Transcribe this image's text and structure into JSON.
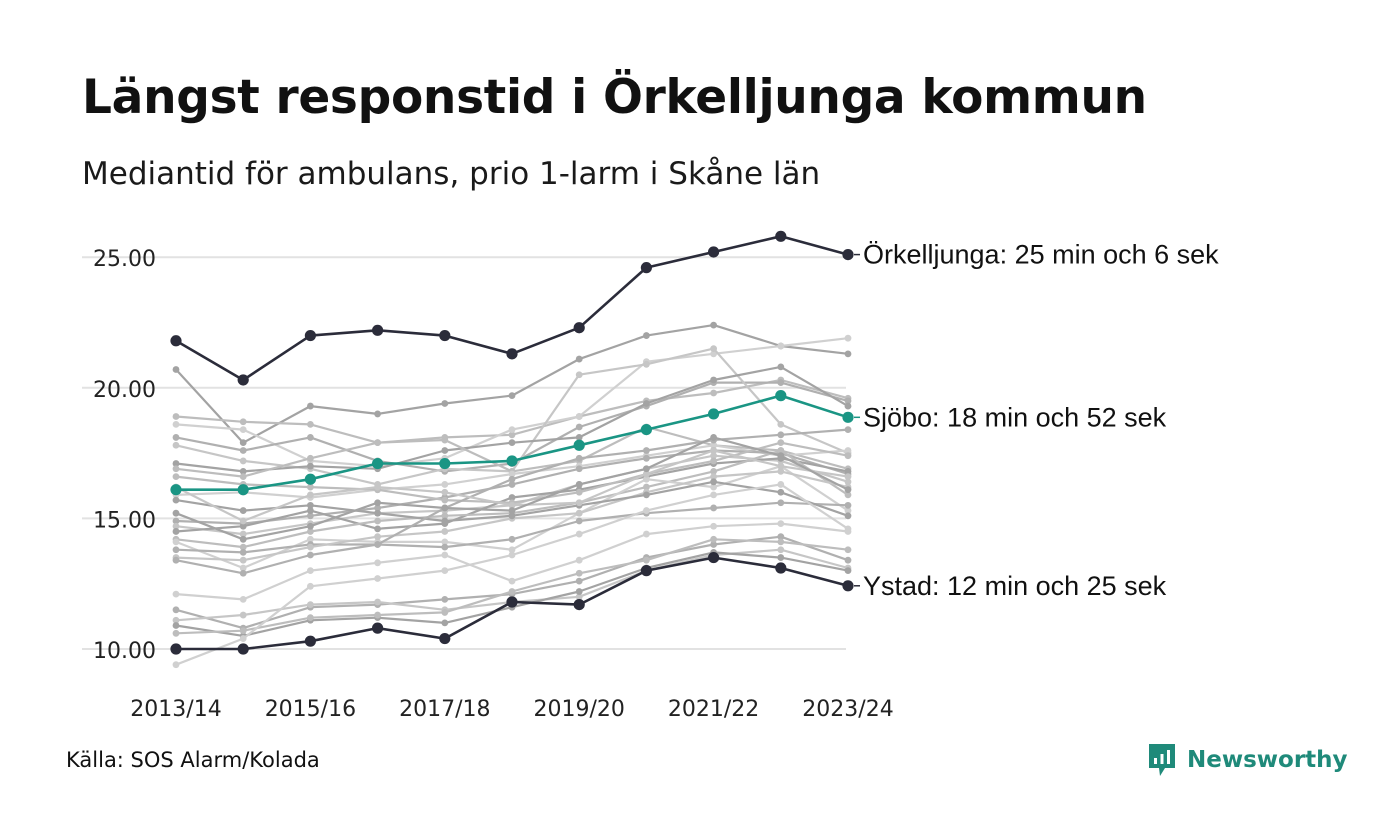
{
  "title": "Längst responstid i Örkelljunga kommun",
  "subtitle": "Mediantid för ambulans, prio 1-larm i Skåne län",
  "source": "Källa: SOS Alarm/Kolada",
  "brand": "Newsworthy",
  "colors": {
    "highlight": "#2b2c3a",
    "accent": "#1a9584",
    "background_lines": [
      "#a3a3a3",
      "#bdbdbd",
      "#d0d0d0",
      "#b0b0b0",
      "#c6c6c6"
    ],
    "grid": "#e2e2e2",
    "brand": "#1f8a7a"
  },
  "chart_data": {
    "type": "line",
    "ylim": [
      9.5,
      26
    ],
    "yticks": [
      "10.00",
      "15.00",
      "20.00",
      "25.00"
    ],
    "grid": true,
    "x": [
      "2013/14",
      "2014/15",
      "2015/16",
      "2016/17",
      "2017/18",
      "2018/19",
      "2019/20",
      "2020/21",
      "2021/22",
      "2022/23",
      "2023/24"
    ],
    "xtick_labels": [
      "2013/14",
      "2015/16",
      "2017/18",
      "2019/20",
      "2021/22",
      "2023/24"
    ],
    "highlighted_series": [
      {
        "name": "Örkelljunga",
        "label": "Örkelljunga: 25 min och 6 sek",
        "color": "#2b2c3a",
        "values": [
          21.8,
          20.3,
          22.0,
          22.2,
          22.0,
          21.3,
          22.3,
          24.6,
          25.2,
          25.8,
          25.1
        ]
      },
      {
        "name": "Sjöbo",
        "label": "Sjöbo: 18 min och 52 sek",
        "color": "#1a9584",
        "values": [
          16.1,
          16.1,
          16.5,
          17.1,
          17.1,
          17.2,
          17.8,
          18.4,
          19.0,
          19.7,
          18.87
        ]
      },
      {
        "name": "Ystad",
        "label": "Ystad: 12 min och 25 sek",
        "color": "#2b2c3a",
        "values": [
          10.0,
          10.0,
          10.3,
          10.8,
          10.4,
          11.8,
          11.7,
          13.0,
          13.5,
          13.1,
          12.42
        ]
      }
    ],
    "other_series": [
      [
        20.7,
        17.9,
        19.3,
        19.0,
        19.4,
        19.7,
        21.1,
        22.0,
        22.4,
        21.6,
        21.3
      ],
      [
        18.9,
        18.7,
        18.6,
        17.9,
        18.1,
        18.2,
        18.9,
        19.5,
        19.8,
        20.3,
        19.6
      ],
      [
        18.6,
        18.4,
        17.2,
        17.0,
        17.3,
        18.4,
        18.9,
        21.0,
        21.3,
        21.6,
        21.9
      ],
      [
        18.1,
        17.6,
        18.1,
        17.2,
        16.8,
        17.1,
        18.5,
        19.3,
        20.2,
        20.2,
        19.5
      ],
      [
        17.8,
        17.2,
        16.9,
        16.3,
        16.9,
        16.8,
        20.5,
        20.9,
        21.5,
        18.6,
        17.5
      ],
      [
        17.1,
        16.8,
        17.0,
        16.9,
        17.6,
        17.9,
        18.1,
        19.4,
        20.3,
        20.8,
        19.3
      ],
      [
        16.9,
        16.6,
        17.3,
        17.9,
        18.0,
        16.8,
        17.2,
        18.5,
        17.8,
        17.6,
        16.9
      ],
      [
        15.9,
        16.0,
        15.8,
        16.1,
        16.3,
        16.7,
        17.0,
        17.4,
        17.8,
        17.4,
        17.6
      ],
      [
        14.9,
        14.8,
        15.1,
        15.4,
        15.8,
        16.3,
        16.9,
        17.3,
        17.6,
        17.5,
        16.7
      ],
      [
        14.7,
        14.4,
        14.8,
        15.2,
        15.3,
        15.5,
        16.3,
        16.9,
        17.4,
        17.2,
        16.4
      ],
      [
        14.5,
        14.7,
        15.3,
        14.6,
        14.8,
        15.8,
        16.1,
        16.6,
        17.1,
        17.3,
        16.8
      ],
      [
        14.2,
        13.9,
        14.5,
        14.9,
        15.1,
        15.2,
        15.6,
        16.2,
        16.8,
        17.6,
        15.9
      ],
      [
        14.1,
        13.1,
        14.2,
        14.1,
        14.1,
        13.8,
        15.2,
        16.5,
        16.2,
        17.0,
        15.3
      ],
      [
        13.8,
        13.7,
        14.0,
        14.0,
        13.9,
        14.2,
        14.9,
        15.2,
        15.4,
        15.6,
        15.5
      ],
      [
        13.5,
        13.4,
        13.9,
        14.3,
        14.5,
        15.0,
        15.2,
        16.0,
        16.6,
        16.8,
        16.2
      ],
      [
        15.7,
        15.3,
        15.5,
        15.2,
        14.9,
        15.1,
        15.5,
        15.9,
        16.4,
        16.0,
        15.1
      ],
      [
        16.6,
        16.3,
        16.2,
        16.1,
        15.7,
        15.6,
        16.0,
        16.7,
        17.2,
        17.9,
        17.4
      ],
      [
        12.1,
        11.9,
        13.0,
        13.3,
        13.6,
        12.6,
        13.4,
        14.4,
        14.7,
        14.8,
        14.5
      ],
      [
        11.5,
        10.8,
        11.6,
        11.7,
        11.9,
        12.1,
        12.6,
        13.5,
        14.0,
        14.3,
        13.4
      ],
      [
        11.1,
        11.3,
        11.7,
        11.8,
        11.5,
        11.8,
        12.0,
        13.0,
        13.6,
        13.8,
        13.1
      ],
      [
        10.9,
        10.5,
        11.1,
        11.2,
        11.0,
        11.6,
        12.2,
        13.1,
        13.7,
        13.5,
        13.0
      ],
      [
        10.6,
        10.7,
        11.2,
        11.3,
        11.4,
        12.2,
        12.9,
        13.4,
        14.2,
        14.1,
        13.8
      ],
      [
        9.4,
        10.4,
        12.4,
        12.7,
        13.0,
        13.6,
        14.4,
        15.3,
        15.9,
        16.3,
        14.6
      ],
      [
        13.4,
        12.9,
        13.6,
        14.0,
        15.4,
        16.5,
        17.3,
        17.6,
        18.0,
        18.2,
        18.4
      ],
      [
        16.2,
        14.9,
        15.9,
        16.2,
        16.0,
        15.5,
        15.6,
        16.7,
        17.6,
        17.0,
        16.6
      ],
      [
        15.2,
        14.2,
        14.7,
        15.6,
        15.4,
        15.3,
        16.3,
        16.9,
        18.1,
        17.4,
        16.1
      ]
    ]
  }
}
